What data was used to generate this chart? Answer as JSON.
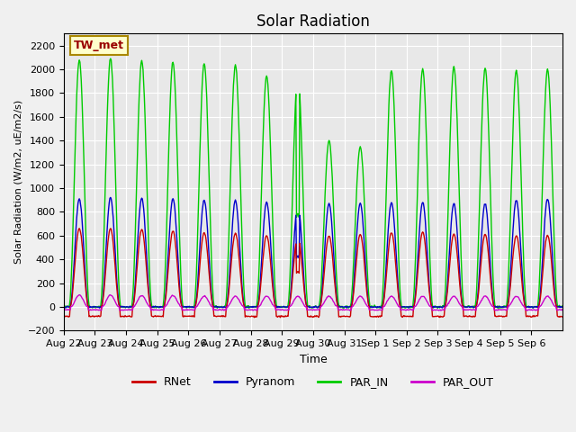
{
  "title": "Solar Radiation",
  "ylabel": "Solar Radiation (W/m2, uE/m2/s)",
  "xlabel": "Time",
  "xlabels": [
    "Aug 22",
    "Aug 23",
    "Aug 24",
    "Aug 25",
    "Aug 26",
    "Aug 27",
    "Aug 28",
    "Aug 29",
    "Aug 30",
    "Aug 31",
    "Sep 1",
    "Sep 2",
    "Sep 3",
    "Sep 4",
    "Sep 5",
    "Sep 6"
  ],
  "ylim": [
    -200,
    2300
  ],
  "yticks": [
    -200,
    0,
    200,
    400,
    600,
    800,
    1000,
    1200,
    1400,
    1600,
    1800,
    2000,
    2200
  ],
  "colors": {
    "RNet": "#cc0000",
    "Pyranom": "#0000cc",
    "PAR_IN": "#00cc00",
    "PAR_OUT": "#cc00cc"
  },
  "legend_label": "TW_met",
  "background_color": "#e8e8e8",
  "fig_background_color": "#f0f0f0",
  "grid_color": "#ffffff",
  "par_in_peaks": [
    2080,
    2090,
    2070,
    2060,
    2050,
    2040,
    1940,
    1960,
    1400,
    1350,
    1990,
    2000,
    2020,
    2010,
    1990,
    2000
  ],
  "rnet_peaks": [
    660,
    660,
    650,
    640,
    625,
    620,
    600,
    595,
    600,
    610,
    625,
    630,
    615,
    610,
    600,
    605
  ],
  "pyranom_peaks": [
    910,
    920,
    915,
    910,
    900,
    895,
    880,
    860,
    870,
    870,
    880,
    880,
    870,
    870,
    900,
    910
  ],
  "par_out_peaks": [
    100,
    100,
    95,
    95,
    90,
    90,
    90,
    90,
    90,
    90,
    90,
    90,
    90,
    90,
    90,
    90
  ],
  "rnet_night": -80,
  "par_out_night": -25,
  "n_days": 16,
  "points_per_day": 48
}
